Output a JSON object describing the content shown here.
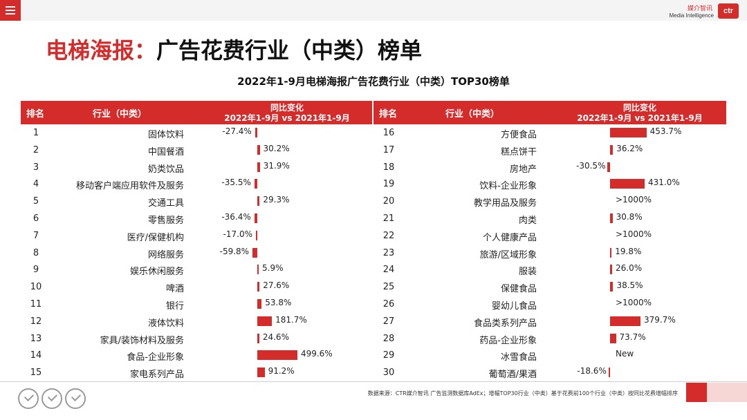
{
  "header": {
    "logo_cn": "媒介智讯",
    "logo_en": "Media Intelligence",
    "logo_ctr": "ctr"
  },
  "title_prefix": "电梯海报：",
  "title_main": "广告花费行业（中类）榜单",
  "footnote": "数据来源：CTR媒介智讯 广告监测数据库AdEx；增幅TOP30行业（中类）基于花费前100个行业（中类）按同比花费增幅排序",
  "colors": {
    "accent": "#d42b2b"
  },
  "chart_data": {
    "type": "table",
    "title": "2022年1-9月电梯海报广告花费行业（中类）TOP30榜单",
    "columns": {
      "rank": "排名",
      "industry": "行业（中类）",
      "change_line1": "同比变化",
      "change_line2": "2022年1-9月 vs 2021年1-9月"
    },
    "rows": [
      {
        "rank": "1",
        "industry": "固体饮料",
        "change": -27.4,
        "label": "-27.4%"
      },
      {
        "rank": "2",
        "industry": "中国餐酒",
        "change": 30.2,
        "label": "30.2%"
      },
      {
        "rank": "3",
        "industry": "奶类饮品",
        "change": 31.9,
        "label": "31.9%"
      },
      {
        "rank": "4",
        "industry": "移动客户端应用软件及服务",
        "change": -35.5,
        "label": "-35.5%"
      },
      {
        "rank": "5",
        "industry": "交通工具",
        "change": 29.3,
        "label": "29.3%"
      },
      {
        "rank": "6",
        "industry": "零售服务",
        "change": -36.4,
        "label": "-36.4%"
      },
      {
        "rank": "7",
        "industry": "医疗/保健机构",
        "change": -17.0,
        "label": "-17.0%"
      },
      {
        "rank": "8",
        "industry": "网络服务",
        "change": -59.8,
        "label": "-59.8%"
      },
      {
        "rank": "9",
        "industry": "娱乐休闲服务",
        "change": 5.9,
        "label": "5.9%"
      },
      {
        "rank": "10",
        "industry": "啤酒",
        "change": 27.6,
        "label": "27.6%"
      },
      {
        "rank": "11",
        "industry": "银行",
        "change": 53.8,
        "label": "53.8%"
      },
      {
        "rank": "12",
        "industry": "液体饮料",
        "change": 181.7,
        "label": "181.7%"
      },
      {
        "rank": "13",
        "industry": "家具/装饰材料及服务",
        "change": 24.6,
        "label": "24.6%"
      },
      {
        "rank": "14",
        "industry": "食品-企业形象",
        "change": 499.6,
        "label": "499.6%"
      },
      {
        "rank": "15",
        "industry": "家电系列产品",
        "change": 91.2,
        "label": "91.2%"
      },
      {
        "rank": "16",
        "industry": "方便食品",
        "change": 453.7,
        "label": "453.7%"
      },
      {
        "rank": "17",
        "industry": "糕点饼干",
        "change": 36.2,
        "label": "36.2%"
      },
      {
        "rank": "18",
        "industry": "房地产",
        "change": -30.5,
        "label": "-30.5%"
      },
      {
        "rank": "19",
        "industry": "饮料-企业形象",
        "change": 431.0,
        "label": "431.0%"
      },
      {
        "rank": "20",
        "industry": "教学用品及服务",
        "change": null,
        "label": ">1000%"
      },
      {
        "rank": "21",
        "industry": "肉类",
        "change": 30.8,
        "label": "30.8%"
      },
      {
        "rank": "22",
        "industry": "个人健康产品",
        "change": null,
        "label": ">1000%"
      },
      {
        "rank": "23",
        "industry": "旅游/区域形象",
        "change": 19.8,
        "label": "19.8%"
      },
      {
        "rank": "24",
        "industry": "服装",
        "change": 26.0,
        "label": "26.0%"
      },
      {
        "rank": "25",
        "industry": "保健食品",
        "change": 38.5,
        "label": "38.5%"
      },
      {
        "rank": "26",
        "industry": "婴幼儿食品",
        "change": null,
        "label": ">1000%"
      },
      {
        "rank": "27",
        "industry": "食品类系列产品",
        "change": 379.7,
        "label": "379.7%"
      },
      {
        "rank": "28",
        "industry": "药品-企业形象",
        "change": 73.7,
        "label": "73.7%"
      },
      {
        "rank": "29",
        "industry": "冰雪食品",
        "change": null,
        "label": "New"
      },
      {
        "rank": "30",
        "industry": "葡萄酒/果酒",
        "change": -18.6,
        "label": "-18.6%"
      }
    ]
  }
}
